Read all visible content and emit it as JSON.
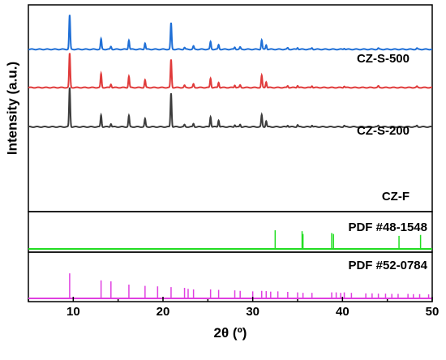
{
  "chart_data": {
    "type": "line",
    "xlabel": "2θ (º)",
    "ylabel": "Intensity (a.u.)",
    "xlim": [
      5,
      50
    ],
    "xticks": [
      10,
      20,
      30,
      40,
      50
    ],
    "grid": false,
    "series": [
      {
        "name": "CZ-S-500",
        "color": "#1f6fd6",
        "baseline_frac": 0.785,
        "peak_frac": 0.95,
        "peaks": [
          [
            9.6,
            1.0
          ],
          [
            13.1,
            0.3
          ],
          [
            14.2,
            0.08
          ],
          [
            16.2,
            0.27
          ],
          [
            18.0,
            0.18
          ],
          [
            20.9,
            0.77
          ],
          [
            22.4,
            0.05
          ],
          [
            23.4,
            0.09
          ],
          [
            25.3,
            0.22
          ],
          [
            26.2,
            0.13
          ],
          [
            28.0,
            0.06
          ],
          [
            28.6,
            0.06
          ],
          [
            31.0,
            0.27
          ],
          [
            31.5,
            0.13
          ],
          [
            33.9,
            0.04
          ],
          [
            35.0,
            0.05
          ],
          [
            36.6,
            0.04
          ],
          [
            40.2,
            0.03
          ],
          [
            44.0,
            0.03
          ],
          [
            48.3,
            0.03
          ]
        ]
      },
      {
        "name": "CZ-S-200",
        "color": "#e03a3a",
        "baseline_frac": 0.6,
        "peak_frac": 0.765,
        "peaks": [
          [
            9.6,
            1.0
          ],
          [
            13.1,
            0.4
          ],
          [
            14.2,
            0.1
          ],
          [
            16.2,
            0.33
          ],
          [
            18.0,
            0.22
          ],
          [
            20.9,
            0.82
          ],
          [
            22.4,
            0.06
          ],
          [
            23.4,
            0.1
          ],
          [
            25.3,
            0.27
          ],
          [
            26.2,
            0.15
          ],
          [
            28.0,
            0.07
          ],
          [
            28.6,
            0.07
          ],
          [
            31.0,
            0.35
          ],
          [
            31.5,
            0.17
          ],
          [
            33.9,
            0.05
          ],
          [
            35.0,
            0.06
          ],
          [
            36.6,
            0.05
          ],
          [
            40.2,
            0.04
          ],
          [
            44.0,
            0.04
          ],
          [
            48.3,
            0.03
          ]
        ]
      },
      {
        "name": "CZ-F",
        "color": "#3c3c3c",
        "baseline_frac": 0.41,
        "peak_frac": 0.6,
        "peaks": [
          [
            9.6,
            1.0
          ],
          [
            13.1,
            0.3
          ],
          [
            14.2,
            0.08
          ],
          [
            16.2,
            0.28
          ],
          [
            18.0,
            0.2
          ],
          [
            20.9,
            0.86
          ],
          [
            22.4,
            0.05
          ],
          [
            23.4,
            0.08
          ],
          [
            25.3,
            0.26
          ],
          [
            26.2,
            0.17
          ],
          [
            28.0,
            0.05
          ],
          [
            28.6,
            0.06
          ],
          [
            31.0,
            0.3
          ],
          [
            31.5,
            0.15
          ],
          [
            33.9,
            0.04
          ],
          [
            35.0,
            0.05
          ],
          [
            36.6,
            0.04
          ],
          [
            40.2,
            0.03
          ],
          [
            44.0,
            0.03
          ],
          [
            48.3,
            0.03
          ]
        ]
      }
    ],
    "reference_patterns": [
      {
        "name": "PDF #48-1548",
        "color": "#22dd22",
        "sticks": [
          [
            32.5,
            1.0
          ],
          [
            35.5,
            0.95
          ],
          [
            35.6,
            0.8
          ],
          [
            38.8,
            0.85
          ],
          [
            39.0,
            0.8
          ],
          [
            46.3,
            0.7
          ],
          [
            48.7,
            0.75
          ]
        ]
      },
      {
        "name": "PDF #52-0784",
        "color": "#e040e0",
        "sticks": [
          [
            9.6,
            1.0
          ],
          [
            13.1,
            0.72
          ],
          [
            14.2,
            0.68
          ],
          [
            16.2,
            0.55
          ],
          [
            18.0,
            0.5
          ],
          [
            19.4,
            0.48
          ],
          [
            20.9,
            0.45
          ],
          [
            22.4,
            0.42
          ],
          [
            22.8,
            0.38
          ],
          [
            23.4,
            0.36
          ],
          [
            25.3,
            0.36
          ],
          [
            26.2,
            0.34
          ],
          [
            28.0,
            0.32
          ],
          [
            28.6,
            0.3
          ],
          [
            30.0,
            0.28
          ],
          [
            31.0,
            0.3
          ],
          [
            31.5,
            0.29
          ],
          [
            32.0,
            0.27
          ],
          [
            32.8,
            0.28
          ],
          [
            33.9,
            0.26
          ],
          [
            35.0,
            0.24
          ],
          [
            35.6,
            0.22
          ],
          [
            36.6,
            0.22
          ],
          [
            38.8,
            0.24
          ],
          [
            39.3,
            0.24
          ],
          [
            39.8,
            0.22
          ],
          [
            40.2,
            0.24
          ],
          [
            41.0,
            0.22
          ],
          [
            42.6,
            0.2
          ],
          [
            43.3,
            0.2
          ],
          [
            44.0,
            0.19
          ],
          [
            44.8,
            0.19
          ],
          [
            45.5,
            0.18
          ],
          [
            46.2,
            0.18
          ],
          [
            47.3,
            0.18
          ],
          [
            47.9,
            0.17
          ],
          [
            48.6,
            0.17
          ],
          [
            49.6,
            0.16
          ]
        ]
      }
    ]
  }
}
